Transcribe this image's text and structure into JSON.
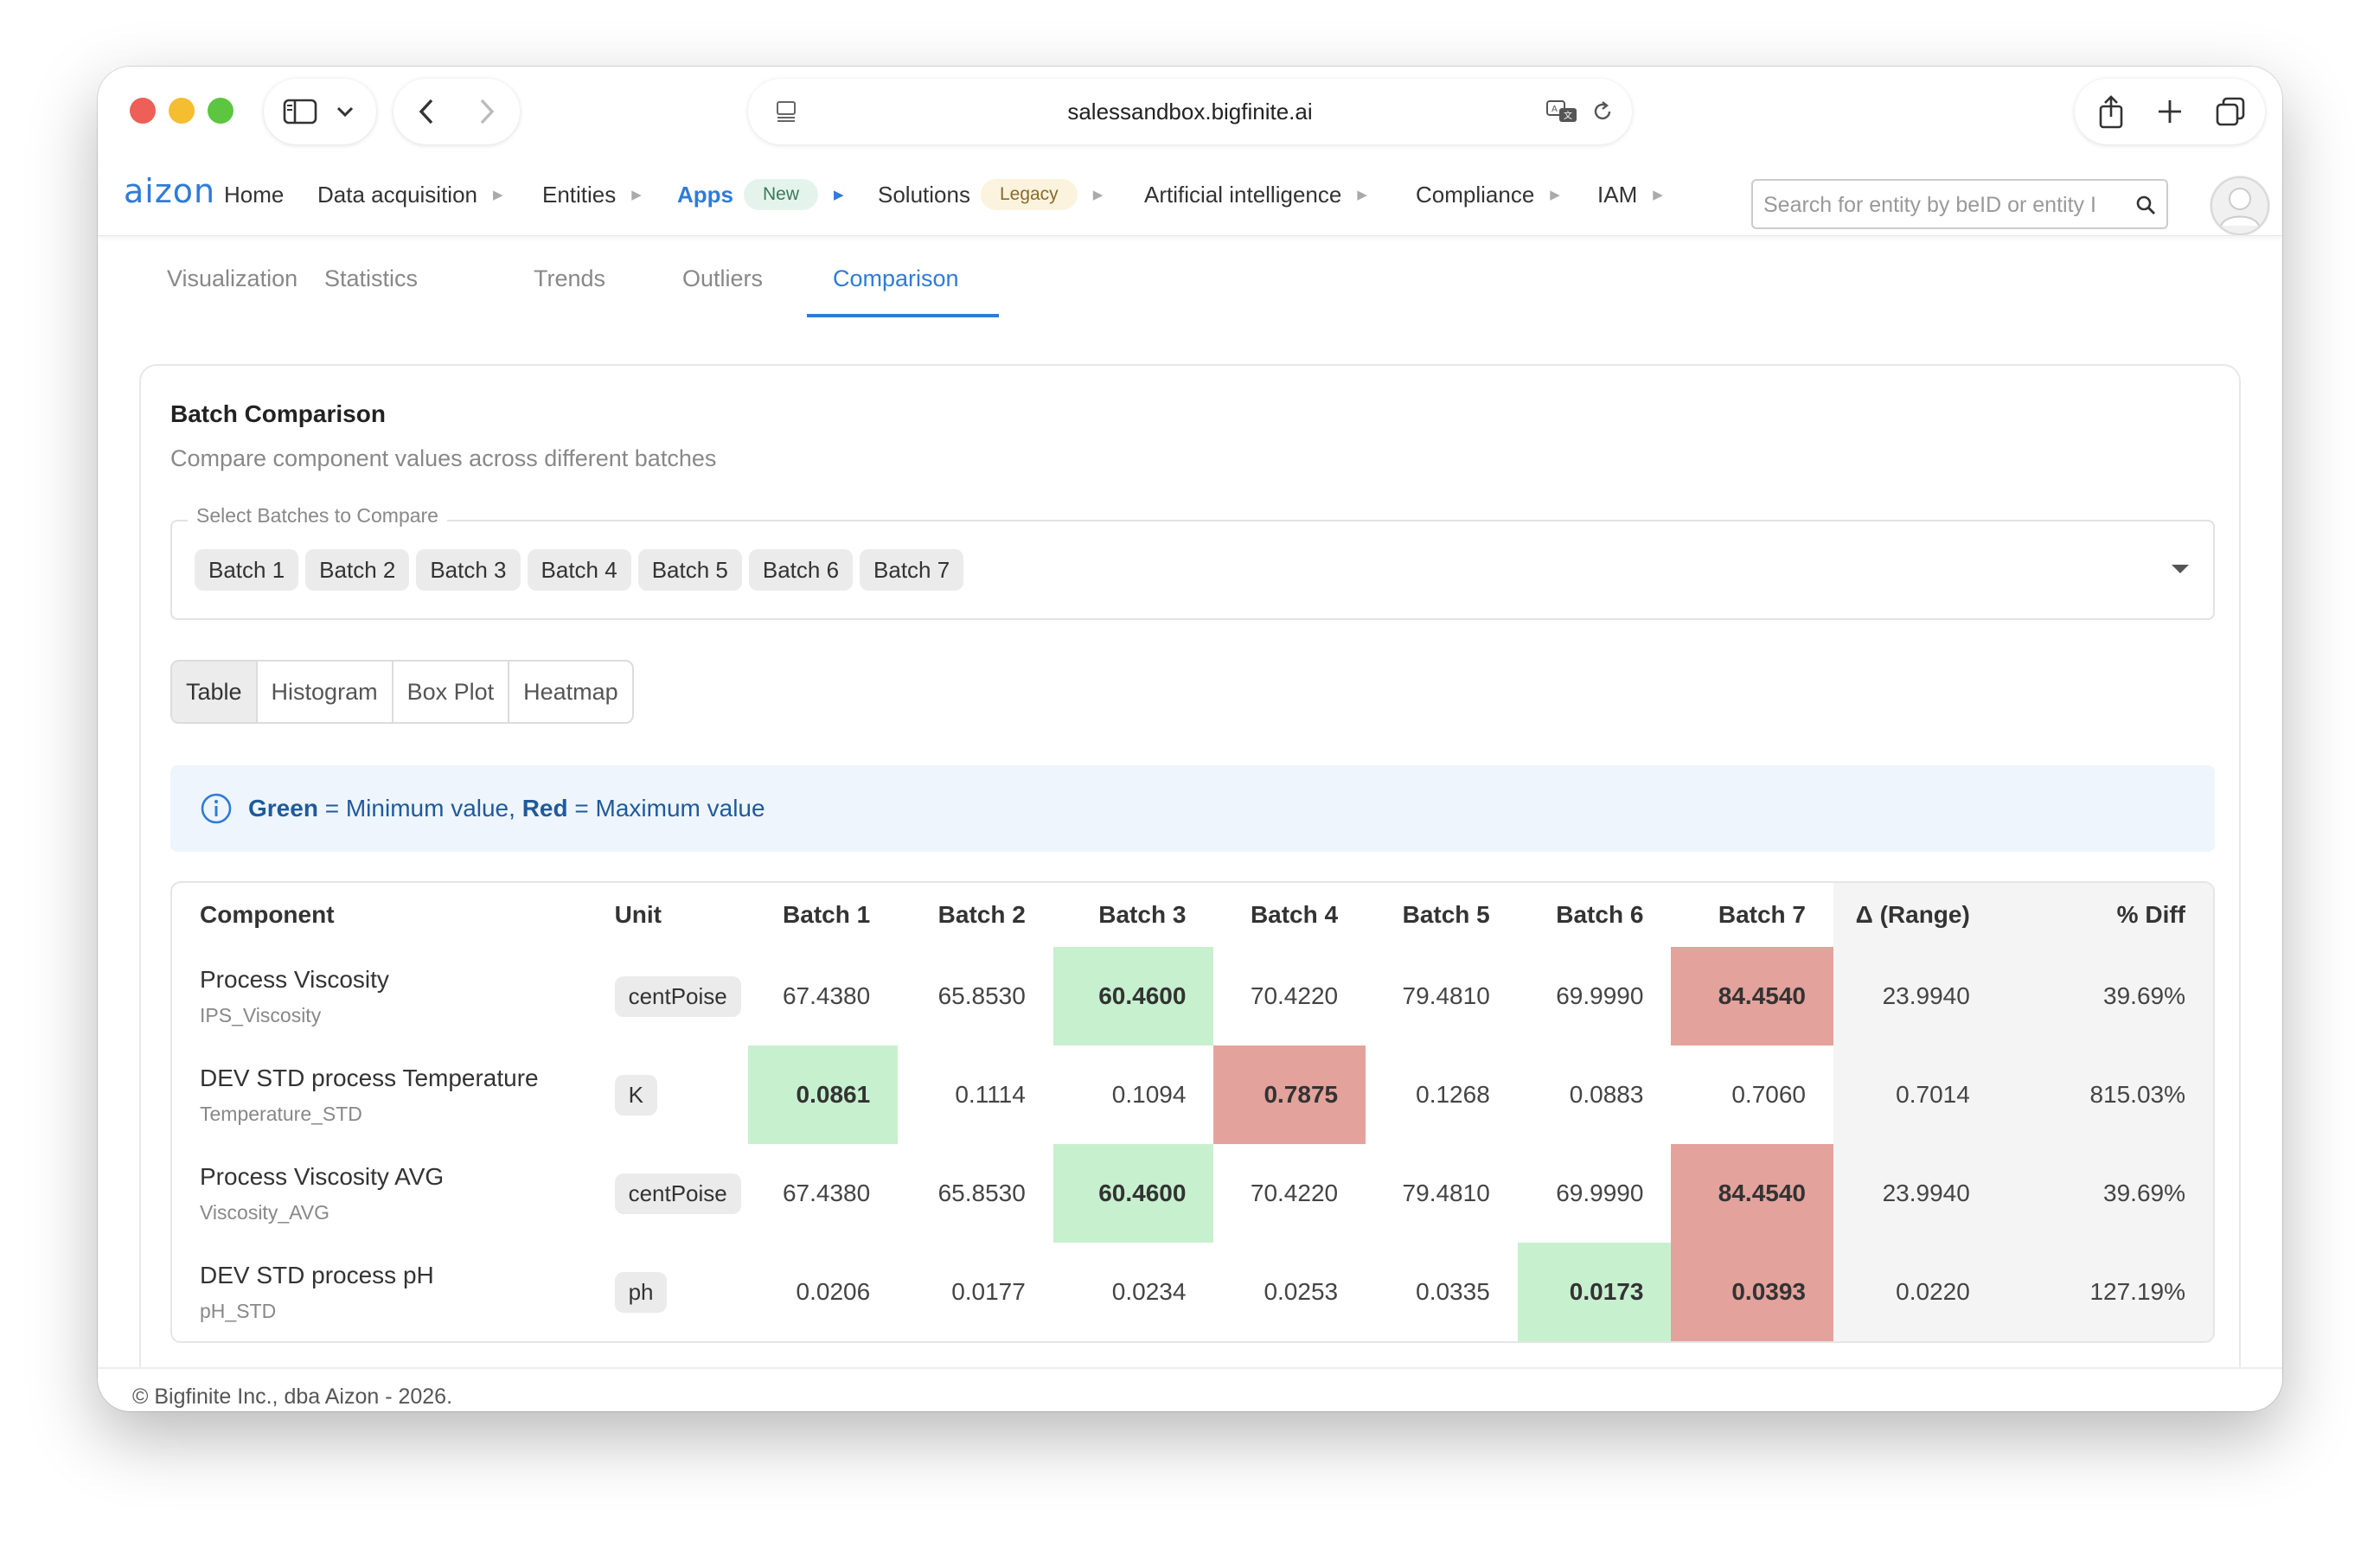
{
  "browser": {
    "url": "salessandbox.bigfinite.ai"
  },
  "nav": {
    "logo": "aizon",
    "items": [
      {
        "label": "Home"
      },
      {
        "label": "Data acquisition"
      },
      {
        "label": "Entities"
      },
      {
        "label": "Apps",
        "badge": "New"
      },
      {
        "label": "Solutions",
        "badge": "Legacy"
      },
      {
        "label": "Artificial intelligence"
      },
      {
        "label": "Compliance"
      },
      {
        "label": "IAM"
      }
    ],
    "search_placeholder": "Search for entity by beID or entity I"
  },
  "tabs": [
    "Visualization",
    "Statistics",
    "Trends",
    "Outliers",
    "Comparison"
  ],
  "active_tab": "Comparison",
  "card": {
    "title": "Batch Comparison",
    "subtitle": "Compare component values across different batches",
    "select_label": "Select Batches to Compare",
    "selected_batches": [
      "Batch 1",
      "Batch 2",
      "Batch 3",
      "Batch 4",
      "Batch 5",
      "Batch 6",
      "Batch 7"
    ]
  },
  "view_tabs": [
    "Table",
    "Histogram",
    "Box Plot",
    "Heatmap"
  ],
  "active_view": "Table",
  "info": {
    "green": "Green",
    "green_text": "= Minimum value,",
    "red": "Red",
    "red_text": "= Maximum value"
  },
  "colors": {
    "min": "#c7f0cf",
    "max": "#e3a29c",
    "accent": "#2f7bd8"
  },
  "table": {
    "headers": [
      "Component",
      "Unit",
      "Batch 1",
      "Batch 2",
      "Batch 3",
      "Batch 4",
      "Batch 5",
      "Batch 6",
      "Batch 7",
      "Δ (Range)",
      "% Diff"
    ],
    "rows": [
      {
        "name": "Process Viscosity",
        "id": "IPS_Viscosity",
        "unit": "centPoise",
        "values": [
          "67.4380",
          "65.8530",
          "60.4600",
          "70.4220",
          "79.4810",
          "69.9990",
          "84.4540"
        ],
        "min": 2,
        "max": 6,
        "range": "23.9940",
        "diff": "39.69%"
      },
      {
        "name": "DEV STD process Temperature",
        "id": "Temperature_STD",
        "unit": "K",
        "values": [
          "0.0861",
          "0.1114",
          "0.1094",
          "0.7875",
          "0.1268",
          "0.0883",
          "0.7060"
        ],
        "min": 0,
        "max": 3,
        "range": "0.7014",
        "diff": "815.03%"
      },
      {
        "name": "Process Viscosity AVG",
        "id": "Viscosity_AVG",
        "unit": "centPoise",
        "values": [
          "67.4380",
          "65.8530",
          "60.4600",
          "70.4220",
          "79.4810",
          "69.9990",
          "84.4540"
        ],
        "min": 2,
        "max": 6,
        "range": "23.9940",
        "diff": "39.69%"
      },
      {
        "name": "DEV STD process pH",
        "id": "pH_STD",
        "unit": "ph",
        "values": [
          "0.0206",
          "0.0177",
          "0.0234",
          "0.0253",
          "0.0335",
          "0.0173",
          "0.0393"
        ],
        "min": 5,
        "max": 6,
        "range": "0.0220",
        "diff": "127.19%"
      }
    ]
  },
  "footer": "© Bigfinite Inc., dba Aizon - 2026."
}
